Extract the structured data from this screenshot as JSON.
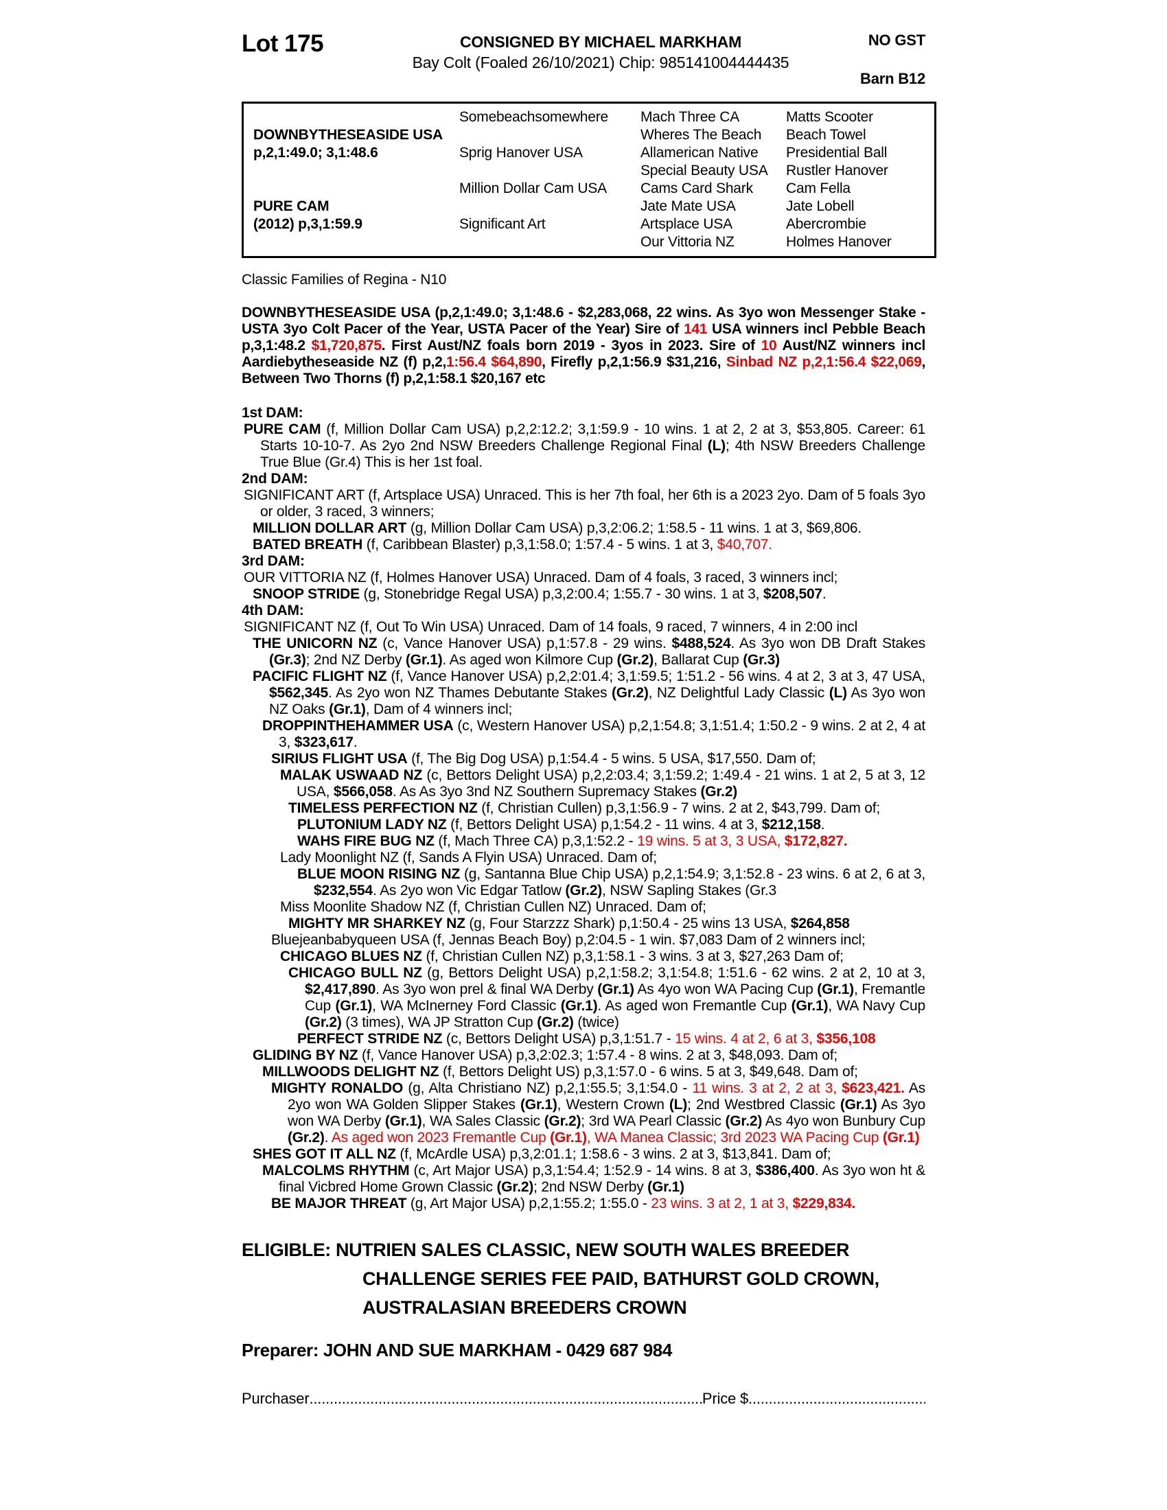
{
  "colors": {
    "accent_red": "#ee0000",
    "text": "#000000"
  },
  "page": {
    "header": {
      "lot": "Lot 175",
      "consigned": "CONSIGNED BY MICHAEL MARKHAM",
      "foaling": "Bay Colt (Foaled 26/10/2021) Chip: 985141004444435",
      "no_gst": "NO GST",
      "barn": "Barn B12"
    },
    "pedigree_box": {
      "rows": [
        [
          "",
          "Somebeachsomewhere",
          "Mach Three CA",
          "Matts Scooter"
        ],
        [
          "DOWNBYTHESEASIDE USA",
          "",
          "Wheres The Beach",
          "Beach Towel"
        ],
        [
          "p,2,1:49.0; 3,1:48.6",
          "Sprig Hanover USA",
          "Allamerican Native",
          "Presidential Ball"
        ],
        [
          "",
          "",
          "Special Beauty USA",
          "Rustler Hanover"
        ],
        [
          "",
          "Million Dollar Cam USA",
          "Cams Card Shark",
          "Cam Fella"
        ],
        [
          "PURE CAM",
          "",
          "Jate Mate USA",
          "Jate Lobell"
        ],
        [
          "(2012) p,3,1:59.9",
          "Significant Art",
          "Artsplace USA",
          "Abercrombie"
        ],
        [
          "",
          "",
          "Our Vittoria NZ",
          "Holmes Hanover"
        ]
      ]
    },
    "families_note": "Classic Families of Regina - N10",
    "sire_paragraph": {
      "segments": [
        {
          "t": "DOWNBYTHESEASIDE USA (p,2,1:49.0; 3,1:48.6 - $2,283,068, 22 wins. As 3yo won Messenger Stake - USTA 3yo Colt Pacer of the Year, USTA Pacer of the Year) Sire of "
        },
        {
          "t": "141",
          "r": true
        },
        {
          "t": " USA winners incl Pebble Beach p,3,1:48.2 "
        },
        {
          "t": "$1,720,875",
          "r": true
        },
        {
          "t": ". First Aust/NZ foals born 2019 - 3yos in 2023. Sire of "
        },
        {
          "t": "10",
          "r": true
        },
        {
          "t": " Aust/NZ winners incl Aardiebytheseaside NZ (f) p,2,"
        },
        {
          "t": "1:56.4 $64,890",
          "r": true
        },
        {
          "t": ", Firefly p,2,1:56.9 $31,216, "
        },
        {
          "t": "Sinbad NZ p,2,1:56.4 $22,069",
          "r": true
        },
        {
          "t": ", Between Two Thorns (f) p,2,1:58.1 $20,167 etc"
        }
      ]
    },
    "dam_sections": [
      {
        "heading": "1st DAM:",
        "entries": [
          {
            "level": 0,
            "segments": [
              {
                "t": "PURE CAM",
                "b": true
              },
              {
                "t": " (f, Million Dollar Cam USA) p,2,2:12.2; 3,1:59.9 - 10 wins. 1 at 2, 2 at 3, $53,805. Career: 61 Starts 10-10-7. As 2yo 2nd NSW Breeders Challenge Regional Final "
              },
              {
                "t": "(L)",
                "b": true
              },
              {
                "t": "; 4th NSW Breeders Challenge True Blue (Gr.4) This is her 1st foal."
              }
            ]
          }
        ]
      },
      {
        "heading": "2nd DAM:",
        "entries": [
          {
            "level": 0,
            "segments": [
              {
                "t": "SIGNIFICANT ART (f, Artsplace USA) Unraced. This is her 7th foal, her 6th is a 2023 2yo. Dam of 5 foals 3yo or older, 3 raced, 3 winners;"
              }
            ]
          },
          {
            "level": 1,
            "segments": [
              {
                "t": "MILLION DOLLAR ART",
                "b": true
              },
              {
                "t": " (g, Million Dollar Cam USA) p,3,2:06.2; 1:58.5 - 11 wins. 1 at 3, $69,806."
              }
            ]
          },
          {
            "level": 1,
            "segments": [
              {
                "t": "BATED BREATH",
                "b": true
              },
              {
                "t": " (f, Caribbean Blaster) p,3,1:58.0; 1:57.4 - 5 wins. 1 at 3, "
              },
              {
                "t": "$40,707.",
                "r": true
              }
            ]
          }
        ]
      },
      {
        "heading": "3rd DAM:",
        "entries": [
          {
            "level": 0,
            "segments": [
              {
                "t": "OUR VITTORIA NZ (f, Holmes Hanover USA) Unraced. Dam of 4 foals, 3 raced, 3 winners incl;"
              }
            ]
          },
          {
            "level": 1,
            "segments": [
              {
                "t": "SNOOP STRIDE",
                "b": true
              },
              {
                "t": " (g, Stonebridge Regal USA) p,3,2:00.4; 1:55.7 - 30 wins. 1 at 3, "
              },
              {
                "t": "$208,507",
                "b": true
              },
              {
                "t": "."
              }
            ]
          }
        ]
      },
      {
        "heading": "4th DAM:",
        "entries": [
          {
            "level": 0,
            "segments": [
              {
                "t": "SIGNIFICANT NZ (f, Out To Win USA) Unraced. Dam of 14 foals, 9 raced, 7 winners, 4 in 2:00 incl"
              }
            ]
          },
          {
            "level": 1,
            "segments": [
              {
                "t": "THE UNICORN NZ",
                "b": true
              },
              {
                "t": " (c, Vance Hanover USA) p,1:57.8 - 29 wins. "
              },
              {
                "t": "$488,524",
                "b": true
              },
              {
                "t": ". As 3yo won DB Draft Stakes "
              },
              {
                "t": "(Gr.3)",
                "b": true
              },
              {
                "t": "; 2nd NZ Derby "
              },
              {
                "t": "(Gr.1)",
                "b": true
              },
              {
                "t": ". As aged won Kilmore Cup "
              },
              {
                "t": "(Gr.2)",
                "b": true
              },
              {
                "t": ", Ballarat Cup "
              },
              {
                "t": "(Gr.3)",
                "b": true
              }
            ]
          },
          {
            "level": 1,
            "segments": [
              {
                "t": "PACIFIC FLIGHT NZ",
                "b": true
              },
              {
                "t": " (f, Vance Hanover USA) p,2,2:01.4; 3,1:59.5; 1:51.2 - 56 wins. 4 at 2, 3 at 3, 47 USA, "
              },
              {
                "t": "$562,345",
                "b": true
              },
              {
                "t": ". As 2yo won NZ Thames Debutante Stakes "
              },
              {
                "t": "(Gr.2)",
                "b": true
              },
              {
                "t": ", NZ Delightful Lady Classic "
              },
              {
                "t": "(L)",
                "b": true
              },
              {
                "t": " As 3yo won NZ Oaks "
              },
              {
                "t": "(Gr.1)",
                "b": true
              },
              {
                "t": ", Dam of 4 winners incl;"
              }
            ]
          },
          {
            "level": 2,
            "segments": [
              {
                "t": "DROPPINTHEHAMMER USA",
                "b": true
              },
              {
                "t": " (c, Western Hanover USA) p,2,1:54.8; 3,1:51.4; 1:50.2 - 9 wins. 2 at 2, 4 at 3, "
              },
              {
                "t": "$323,617",
                "b": true
              },
              {
                "t": "."
              }
            ]
          },
          {
            "level": 3,
            "segments": [
              {
                "t": "SIRIUS FLIGHT USA",
                "b": true
              },
              {
                "t": " (f, The Big Dog USA) p,1:54.4 - 5 wins. 5 USA, $17,550. Dam of;"
              }
            ]
          },
          {
            "level": 4,
            "segments": [
              {
                "t": "MALAK USWAAD NZ",
                "b": true
              },
              {
                "t": " (c, Bettors Delight USA) p,2,2:03.4; 3,1:59.2; 1:49.4 - 21 wins. 1 at 2, 5 at 3, 12 USA, "
              },
              {
                "t": "$566,058",
                "b": true
              },
              {
                "t": ". As As 3yo 3nd NZ Southern Supremacy Stakes "
              },
              {
                "t": "(Gr.2)",
                "b": true
              }
            ]
          },
          {
            "level": 5,
            "segments": [
              {
                "t": "TIMELESS PERFECTION NZ",
                "b": true
              },
              {
                "t": " (f, Christian Cullen) p,3,1:56.9 - 7 wins. 2 at 2, $43,799. Dam of;"
              }
            ]
          },
          {
            "level": 6,
            "segments": [
              {
                "t": "PLUTONIUM LADY NZ",
                "b": true
              },
              {
                "t": " (f, Bettors Delight USA) p,1:54.2 - 11 wins. 4 at 3, "
              },
              {
                "t": "$212,158",
                "b": true
              },
              {
                "t": "."
              }
            ]
          },
          {
            "level": 6,
            "segments": [
              {
                "t": "WAHS FIRE BUG NZ",
                "b": true
              },
              {
                "t": " (f, Mach Three CA) p,3,1:52.2 - "
              },
              {
                "t": "19 wins. 5 at 3, 3 USA, ",
                "r": true
              },
              {
                "t": "$172,827.",
                "r": true,
                "b": true
              }
            ]
          },
          {
            "level": 4,
            "segments": [
              {
                "t": "Lady Moonlight NZ (f, Sands A Flyin USA) Unraced. Dam of;"
              }
            ]
          },
          {
            "level": 6,
            "segments": [
              {
                "t": "BLUE MOON RISING NZ",
                "b": true
              },
              {
                "t": " (g, Santanna Blue Chip USA) p,2,1:54.9; 3,1:52.8 - 23 wins. 6 at 2, 6 at 3, "
              },
              {
                "t": "$232,554",
                "b": true
              },
              {
                "t": ". As 2yo won Vic Edgar Tatlow "
              },
              {
                "t": "(Gr.2)",
                "b": true
              },
              {
                "t": ", NSW Sapling Stakes (Gr.3"
              }
            ]
          },
          {
            "level": 4,
            "segments": [
              {
                "t": "Miss Moonlite Shadow NZ (f, Christian Cullen NZ) Unraced. Dam of;"
              }
            ]
          },
          {
            "level": 5,
            "segments": [
              {
                "t": "MIGHTY MR SHARKEY NZ",
                "b": true
              },
              {
                "t": " (g, Four Starzzz Shark) p,1:50.4 - 25 wins 13 USA, "
              },
              {
                "t": "$264,858",
                "b": true
              }
            ]
          },
          {
            "level": 3,
            "segments": [
              {
                "t": "Bluejeanbabyqueen USA (f, Jennas Beach Boy) p,2:04.5 - 1 win. $7,083 Dam of 2 winners incl;"
              }
            ]
          },
          {
            "level": 4,
            "segments": [
              {
                "t": "CHICAGO BLUES NZ",
                "b": true
              },
              {
                "t": " (f, Christian Cullen NZ) p,3,1:58.1 - 3 wins. 3 at 3, $27,263 Dam of;"
              }
            ]
          },
          {
            "level": 5,
            "segments": [
              {
                "t": "CHICAGO BULL NZ",
                "b": true
              },
              {
                "t": " (g, Bettors Delight USA) p,2,1:58.2; 3,1:54.8; 1:51.6 - 62 wins. 2 at 2, 10 at 3, "
              },
              {
                "t": "$2,417,890",
                "b": true
              },
              {
                "t": ". As 3yo won prel & final WA Derby "
              },
              {
                "t": "(Gr.1)",
                "b": true
              },
              {
                "t": " As 4yo won WA Pacing Cup "
              },
              {
                "t": "(Gr.1)",
                "b": true
              },
              {
                "t": ", Fremantle Cup "
              },
              {
                "t": "(Gr.1)",
                "b": true
              },
              {
                "t": ", WA McInerney Ford Classic "
              },
              {
                "t": "(Gr.1)",
                "b": true
              },
              {
                "t": ". As aged won Fremantle Cup "
              },
              {
                "t": "(Gr.1)",
                "b": true
              },
              {
                "t": ", WA Navy Cup "
              },
              {
                "t": "(Gr.2)",
                "b": true
              },
              {
                "t": " (3 times), WA JP Stratton Cup "
              },
              {
                "t": "(Gr.2)",
                "b": true
              },
              {
                "t": " (twice)"
              }
            ]
          },
          {
            "level": 6,
            "segments": [
              {
                "t": "PERFECT STRIDE NZ",
                "b": true
              },
              {
                "t": " (c, Bettors Delight USA) p,3,1:51.7 - "
              },
              {
                "t": "15 wins. 4 at 2, 6 at 3, ",
                "r": true
              },
              {
                "t": "$356,108",
                "r": true,
                "b": true
              }
            ]
          },
          {
            "level": 1,
            "segments": [
              {
                "t": "GLIDING BY NZ",
                "b": true
              },
              {
                "t": " (f, Vance Hanover USA) p,3,2:02.3; 1:57.4 - 8 wins. 2 at 3, $48,093. Dam of;"
              }
            ]
          },
          {
            "level": 2,
            "segments": [
              {
                "t": "MILLWOODS DELIGHT NZ",
                "b": true
              },
              {
                "t": " (f, Bettors Delight US) p,3,1:57.0 - 6 wins. 5 at 3, $49,648. Dam of;"
              }
            ]
          },
          {
            "level": 3,
            "segments": [
              {
                "t": "MIGHTY RONALDO",
                "b": true
              },
              {
                "t": " (g, Alta Christiano NZ) p,2,1:55.5; 3,1:54.0 - "
              },
              {
                "t": "11 wins. 3 at 2, 2 at 3, ",
                "r": true
              },
              {
                "t": "$623,421.",
                "r": true,
                "b": true
              },
              {
                "t": " As 2yo won WA Golden Slipper Stakes "
              },
              {
                "t": "(Gr.1)",
                "b": true
              },
              {
                "t": ", Western Crown "
              },
              {
                "t": "(L)",
                "b": true
              },
              {
                "t": "; 2nd Westbred Classic "
              },
              {
                "t": "(Gr.1)",
                "b": true
              },
              {
                "t": " As 3yo won WA Derby "
              },
              {
                "t": "(Gr.1)",
                "b": true
              },
              {
                "t": ", WA Sales Classic "
              },
              {
                "t": "(Gr.2)",
                "b": true
              },
              {
                "t": "; 3rd WA Pearl Classic "
              },
              {
                "t": "(Gr.2)",
                "b": true
              },
              {
                "t": " As 4yo won Bunbury Cup "
              },
              {
                "t": "(Gr.2)",
                "b": true
              },
              {
                "t": ". "
              },
              {
                "t": "As aged won 2023 Fremantle Cup ",
                "r": true
              },
              {
                "t": "(Gr.1)",
                "r": true,
                "b": true
              },
              {
                "t": ", WA Manea Classic; 3rd 2023 WA Pacing Cup ",
                "r": true
              },
              {
                "t": "(Gr.1)",
                "r": true,
                "b": true
              }
            ]
          },
          {
            "level": 1,
            "segments": [
              {
                "t": "SHES GOT IT ALL NZ",
                "b": true
              },
              {
                "t": " (f, McArdle USA) p,3,2:01.1; 1:58.6 - 3 wins. 2 at 3, $13,841. Dam of;"
              }
            ]
          },
          {
            "level": 2,
            "segments": [
              {
                "t": "MALCOLMS RHYTHM",
                "b": true
              },
              {
                "t": " (c, Art Major USA) p,3,1:54.4; 1:52.9 - 14 wins. 8 at 3, "
              },
              {
                "t": "$386,400",
                "b": true
              },
              {
                "t": ". As 3yo won ht & final Vicbred Home Grown Classic "
              },
              {
                "t": "(Gr.2)",
                "b": true
              },
              {
                "t": "; 2nd NSW Derby "
              },
              {
                "t": "(Gr.1)",
                "b": true
              }
            ]
          },
          {
            "level": 3,
            "segments": [
              {
                "t": "BE MAJOR THREAT",
                "b": true
              },
              {
                "t": " (g, Art Major USA) p,2,1:55.2; 1:55.0 - "
              },
              {
                "t": "23 wins. 3 at 2, 1 at 3, ",
                "r": true
              },
              {
                "t": "$229,834.",
                "r": true,
                "b": true
              }
            ]
          }
        ]
      }
    ],
    "eligible": {
      "lines": [
        "ELIGIBLE: NUTRIEN SALES CLASSIC, NEW SOUTH WALES BREEDER",
        "CHALLENGE SERIES FEE PAID, BATHURST GOLD CROWN,",
        "AUSTRALASIAN BREEDERS CROWN"
      ]
    },
    "preparer": "Preparer: JOHN AND SUE MARKHAM - 0429 687 984",
    "purchaser": {
      "label": "Purchaser",
      "leader_dots": "..........................................................................................................................",
      "price_label": "Price $",
      "price_dots": "............................................................"
    }
  }
}
